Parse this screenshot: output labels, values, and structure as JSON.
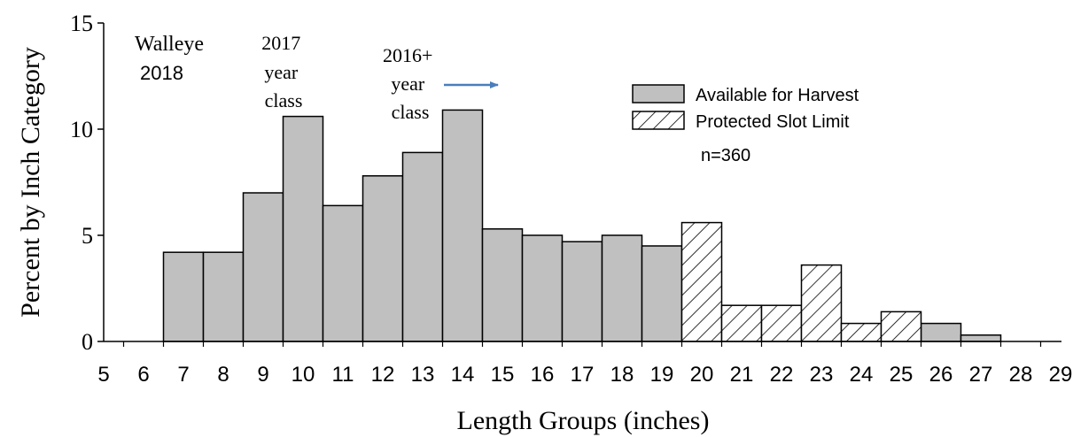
{
  "chart_data": {
    "type": "bar",
    "x_ticks": [
      "5",
      "6",
      "7",
      "8",
      "9",
      "10",
      "11",
      "12",
      "13",
      "14",
      "15",
      "16",
      "17",
      "18",
      "19",
      "20",
      "21",
      "22",
      "23",
      "24",
      "25",
      "26",
      "27",
      "28",
      "29"
    ],
    "y_ticks": [
      "0",
      "5",
      "10",
      "15"
    ],
    "xlabel": "Length Groups (inches)",
    "ylabel": "Percent by Inch Category",
    "ylim": [
      0,
      15
    ],
    "xlim": [
      5,
      29
    ],
    "series": [
      {
        "name": "Available for Harvest",
        "color": "#c0c0c0",
        "pattern": "solid",
        "points": [
          {
            "x": 7,
            "y": 4.2
          },
          {
            "x": 8,
            "y": 4.2
          },
          {
            "x": 9,
            "y": 7.0
          },
          {
            "x": 10,
            "y": 10.6
          },
          {
            "x": 11,
            "y": 6.4
          },
          {
            "x": 12,
            "y": 7.8
          },
          {
            "x": 13,
            "y": 8.9
          },
          {
            "x": 14,
            "y": 10.9
          },
          {
            "x": 15,
            "y": 5.3
          },
          {
            "x": 16,
            "y": 5.0
          },
          {
            "x": 17,
            "y": 4.7
          },
          {
            "x": 18,
            "y": 5.0
          },
          {
            "x": 19,
            "y": 4.5
          },
          {
            "x": 26,
            "y": 0.85
          },
          {
            "x": 27,
            "y": 0.3
          }
        ]
      },
      {
        "name": "Protected Slot Limit",
        "color": "#ffffff",
        "pattern": "hatch",
        "points": [
          {
            "x": 20,
            "y": 5.6
          },
          {
            "x": 21,
            "y": 1.7
          },
          {
            "x": 22,
            "y": 1.7
          },
          {
            "x": 23,
            "y": 3.6
          },
          {
            "x": 24,
            "y": 0.85
          },
          {
            "x": 25,
            "y": 1.4
          }
        ]
      }
    ],
    "annotations": {
      "species": "Walleye",
      "year": "2018",
      "class_2017": [
        "2017",
        "year",
        "class"
      ],
      "class_2016": [
        "2016+",
        "year",
        "class"
      ],
      "sample_size": "n=360"
    },
    "legend_position": "top-right",
    "arrow_color": "#4a7ebb",
    "grid": false
  }
}
